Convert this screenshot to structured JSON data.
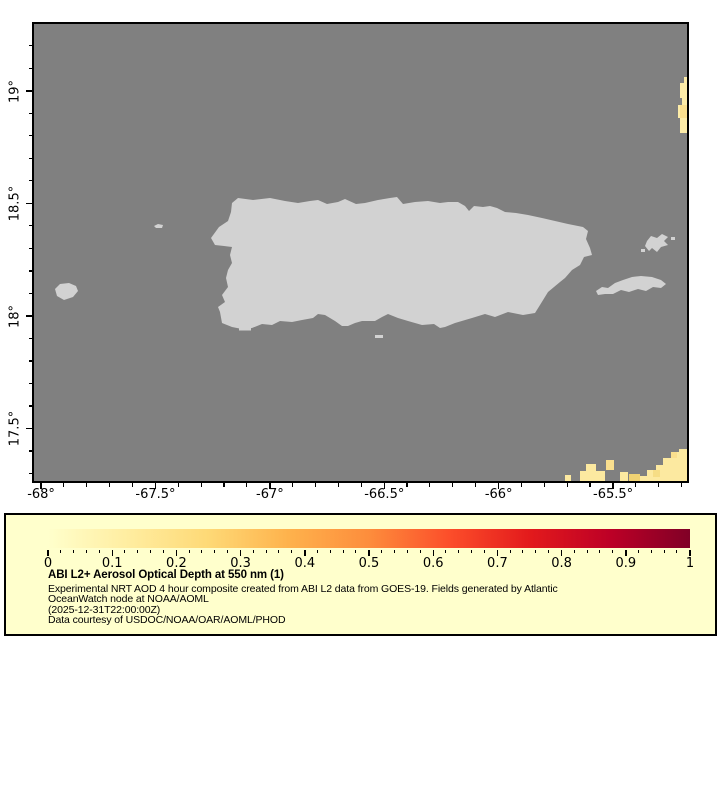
{
  "map": {
    "ocean_color": "#808080",
    "land_color": "#d2d2d2",
    "border_color": "#000000",
    "extent": {
      "lon_min": -68.031,
      "lon_max": -65.177,
      "lat_min": 17.267,
      "lat_max": 19.298
    },
    "x_axis": {
      "majors": [
        -68,
        -67.5,
        -67,
        -66.5,
        -66,
        -65.5
      ],
      "labels": [
        "-68°",
        "-67.5°",
        "-67°",
        "-66.5°",
        "-66°",
        "-65.5°"
      ],
      "minor_step": 0.1
    },
    "y_axis": {
      "majors": [
        19,
        18.5,
        18,
        17.5
      ],
      "labels": [
        "19°",
        "18.5°",
        "18°",
        "17.5°"
      ],
      "minor_step": 0.1
    },
    "aod_patch_colors": {
      "pale": "#fce9a0",
      "light": "#fdeca8",
      "mid": "#fadf8e",
      "gold": "#f0d273",
      "gold2": "#f6dd85"
    }
  },
  "legend": {
    "background": "#ffffcc",
    "border_color": "#000000",
    "colorbar": {
      "min": 0,
      "max": 1,
      "tick_labels": [
        "0",
        "0.1",
        "0.2",
        "0.3",
        "0.4",
        "0.5",
        "0.6",
        "0.7",
        "0.8",
        "0.9",
        "1"
      ],
      "minor_step": 0.02,
      "colormap_name": "YlOrRd",
      "colormap": [
        "#ffffcc",
        "#ffeda0",
        "#fed976",
        "#feb24c",
        "#fd8d3c",
        "#fc4e2a",
        "#e31a1c",
        "#bd0026",
        "#800026"
      ]
    },
    "title": "ABI L2+ Aerosol Optical Depth at 550 nm (1)",
    "lines": [
      "Experimental NRT AOD 4 hour composite created from ABI L2 data from GOES-19. Fields generated by Atlantic",
      "OceanWatch node at NOAA/AOML",
      "(2025-12-31T22:00:00Z)",
      "Data courtesy of USDOC/NOAA/OAR/AOML/PHOD"
    ]
  },
  "chart_data": {
    "type": "heatmap",
    "title": "ABI L2+ Aerosol Optical Depth at 550 nm (1)",
    "x_tick_labels": [
      "-68°",
      "-67.5°",
      "-67°",
      "-66.5°",
      "-66°",
      "-65.5°"
    ],
    "y_tick_labels": [
      "19°",
      "18.5°",
      "18°",
      "17.5°"
    ],
    "colorbar_range": [
      0,
      1
    ],
    "colorbar_tick_values": [
      0,
      0.1,
      0.2,
      0.3,
      0.4,
      0.5,
      0.6,
      0.7,
      0.8,
      0.9,
      1
    ],
    "observed_values": [
      {
        "area": "right edge near 18.9°, -65.2°",
        "approx_aod": 0.1
      },
      {
        "area": "bottom-right corner near 17.3°, -65.2° to -65.6°",
        "approx_aod": 0.12
      },
      {
        "area": "remainder of domain",
        "approx_aod": null,
        "note": "no retrieval (gray), land masked light gray"
      }
    ],
    "legend_position": "bottom"
  }
}
